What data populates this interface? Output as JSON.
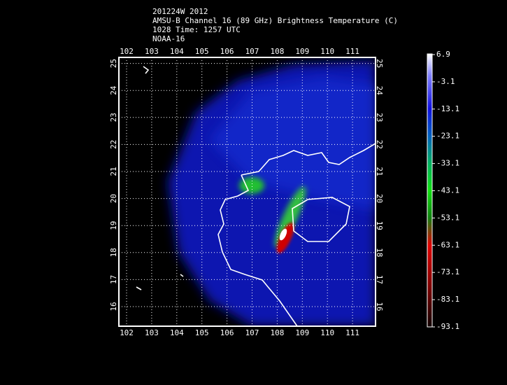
{
  "header": {
    "lines": [
      "201224W 2012",
      "AMSU-B Channel 16 (89 GHz) Brightness Temperature (C)",
      "1028 Time: 1257 UTC",
      "NOAA-16"
    ]
  },
  "map": {
    "lon_ticks": [
      102,
      103,
      104,
      105,
      106,
      107,
      108,
      109,
      110,
      111
    ],
    "lat_ticks": [
      16,
      17,
      18,
      19,
      20,
      21,
      22,
      23,
      24,
      25
    ]
  },
  "colorbar": {
    "ticks": [
      6.9,
      -3.1,
      -13.1,
      -23.1,
      -33.1,
      -43.1,
      -53.1,
      -63.1,
      -73.1,
      -83.1,
      -93.1
    ]
  }
}
